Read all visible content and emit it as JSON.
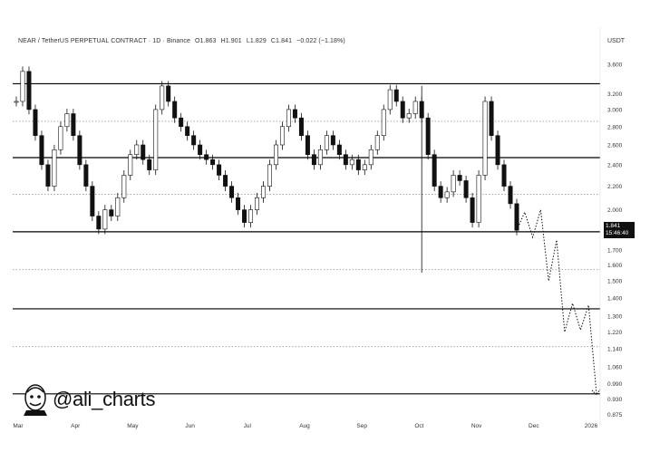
{
  "header": {
    "symbol": "NEAR / TetherUS PERPETUAL CONTRACT · 1D · Binance",
    "open": "O1.863",
    "high": "H1.901",
    "low": "L1.829",
    "close": "C1.841",
    "change": "−0.022 (−1.18%)"
  },
  "currency": "USDT",
  "last_price": {
    "price": "1.841",
    "countdown": "15:46:40"
  },
  "watermark": "@ali_charts",
  "colors": {
    "candle": "#111111",
    "level_solid": "#000000",
    "level_dotted": "#9a9a9a",
    "price_tag_bg": "#111111"
  },
  "chart_data": {
    "type": "candlestick",
    "y_scale": "log",
    "y_range": [
      0.86,
      3.75
    ],
    "y_tick_labels": [
      "3.600",
      "3.200",
      "3.000",
      "2.800",
      "2.600",
      "2.400",
      "2.200",
      "2.000",
      "1.841",
      "1.700",
      "1.600",
      "1.500",
      "1.400",
      "1.300",
      "1.220",
      "1.140",
      "1.060",
      "0.990",
      "0.930",
      "0.875"
    ],
    "x_tick_labels": [
      "Mar",
      "Apr",
      "May",
      "Jun",
      "Jul",
      "Aug",
      "Sep",
      "Oct",
      "Nov",
      "Dec",
      "2026"
    ],
    "horizontal_levels_solid": [
      3.33,
      2.47,
      1.83,
      1.34,
      0.95
    ],
    "horizontal_levels_dotted": [
      2.86,
      2.13,
      1.57,
      1.15
    ],
    "price_path": [
      [
        "Mar",
        3.1
      ],
      [
        "Mar",
        3.5
      ],
      [
        "Mar",
        3.0
      ],
      [
        "Mar",
        2.7
      ],
      [
        "Mar",
        2.4
      ],
      [
        "Mar",
        2.2
      ],
      [
        "Mar",
        2.55
      ],
      [
        "Mar",
        2.8
      ],
      [
        "Mar",
        2.95
      ],
      [
        "Mar",
        2.7
      ],
      [
        "Apr",
        2.4
      ],
      [
        "Apr",
        2.2
      ],
      [
        "Apr",
        1.95
      ],
      [
        "Apr",
        1.85
      ],
      [
        "Apr",
        2.0
      ],
      [
        "Apr",
        1.95
      ],
      [
        "Apr",
        2.1
      ],
      [
        "Apr",
        2.3
      ],
      [
        "Apr",
        2.5
      ],
      [
        "Apr",
        2.6
      ],
      [
        "Apr",
        2.45
      ],
      [
        "Apr",
        2.35
      ],
      [
        "May",
        3.0
      ],
      [
        "May",
        3.3
      ],
      [
        "May",
        3.1
      ],
      [
        "May",
        2.9
      ],
      [
        "May",
        2.8
      ],
      [
        "May",
        2.7
      ],
      [
        "May",
        2.6
      ],
      [
        "May",
        2.5
      ],
      [
        "Jun",
        2.45
      ],
      [
        "Jun",
        2.4
      ],
      [
        "Jun",
        2.3
      ],
      [
        "Jun",
        2.2
      ],
      [
        "Jun",
        2.1
      ],
      [
        "Jun",
        2.0
      ],
      [
        "Jun",
        1.9
      ],
      [
        "Jul",
        2.0
      ],
      [
        "Jul",
        2.1
      ],
      [
        "Jul",
        2.2
      ],
      [
        "Jul",
        2.4
      ],
      [
        "Jul",
        2.6
      ],
      [
        "Jul",
        2.8
      ],
      [
        "Jul",
        3.0
      ],
      [
        "Jul",
        2.9
      ],
      [
        "Jul",
        2.7
      ],
      [
        "Aug",
        2.5
      ],
      [
        "Aug",
        2.4
      ],
      [
        "Aug",
        2.55
      ],
      [
        "Aug",
        2.7
      ],
      [
        "Aug",
        2.6
      ],
      [
        "Aug",
        2.5
      ],
      [
        "Aug",
        2.4
      ],
      [
        "Aug",
        2.45
      ],
      [
        "Sep",
        2.35
      ],
      [
        "Sep",
        2.4
      ],
      [
        "Sep",
        2.55
      ],
      [
        "Sep",
        2.7
      ],
      [
        "Sep",
        3.0
      ],
      [
        "Sep",
        3.25
      ],
      [
        "Sep",
        3.1
      ],
      [
        "Sep",
        2.9
      ],
      [
        "Oct",
        2.95
      ],
      [
        "Oct",
        3.1
      ],
      [
        "Oct",
        2.9
      ],
      [
        "Oct",
        2.5
      ],
      [
        "Oct",
        2.2
      ],
      [
        "Oct",
        2.1
      ],
      [
        "Oct",
        2.15
      ],
      [
        "Oct",
        2.3
      ],
      [
        "Oct",
        2.25
      ],
      [
        "Oct",
        2.1
      ],
      [
        "Nov",
        1.9
      ],
      [
        "Nov",
        2.3
      ],
      [
        "Nov",
        3.1
      ],
      [
        "Nov",
        2.7
      ],
      [
        "Nov",
        2.4
      ],
      [
        "Nov",
        2.2
      ],
      [
        "Nov",
        2.05
      ],
      [
        "Nov",
        1.841
      ]
    ],
    "projection_path": [
      1.841,
      1.98,
      1.79,
      2.0,
      1.5,
      1.77,
      1.22,
      1.37,
      1.23,
      1.36,
      0.95
    ]
  }
}
